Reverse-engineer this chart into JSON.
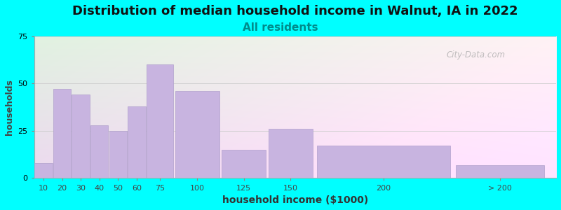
{
  "title": "Distribution of median household income in Walnut, IA in 2022",
  "subtitle": "All residents",
  "xlabel": "household income ($1000)",
  "ylabel": "households",
  "background_color": "#00FFFF",
  "bar_color": "#c8b4e0",
  "bar_edge_color": "#b0a0cc",
  "categories": [
    "10",
    "20",
    "30",
    "40",
    "50",
    "60",
    "75",
    "100",
    "125",
    "150",
    "200",
    "> 200"
  ],
  "values": [
    8,
    47,
    44,
    28,
    25,
    38,
    60,
    46,
    15,
    26,
    17,
    7
  ],
  "bar_lefts": [
    5,
    15,
    25,
    35,
    45,
    55,
    65,
    80,
    105,
    130,
    155,
    230
  ],
  "bar_widths": [
    10,
    10,
    10,
    10,
    10,
    10,
    15,
    25,
    25,
    25,
    75,
    50
  ],
  "bar_centers": [
    10,
    20,
    30,
    40,
    50,
    60,
    72.5,
    92.5,
    117.5,
    142.5,
    192.5,
    255
  ],
  "ylim": [
    0,
    75
  ],
  "yticks": [
    0,
    25,
    50,
    75
  ],
  "xlim_left": 5,
  "xlim_right": 285,
  "title_fontsize": 13,
  "subtitle_fontsize": 11,
  "subtitle_color": "#008B8B",
  "watermark": "City-Data.com",
  "xtick_labels": [
    "10",
    "20",
    "30",
    "40",
    "50",
    "60",
    "75",
    "100",
    "125",
    "150",
    "200",
    "> 200"
  ],
  "xtick_positions": [
    10,
    20,
    30,
    40,
    50,
    60,
    72.5,
    92.5,
    117.5,
    142.5,
    192.5,
    255
  ]
}
